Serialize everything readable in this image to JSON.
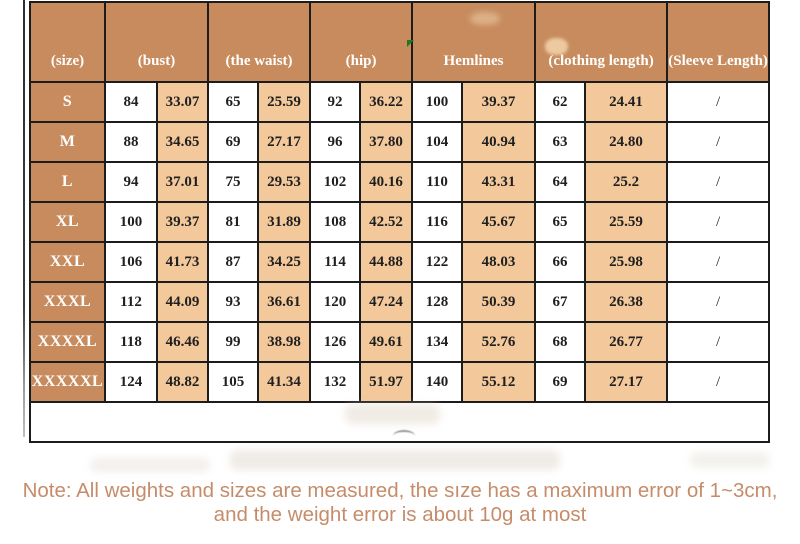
{
  "chart_data": {
    "type": "table",
    "columns": [
      "(size)",
      "(bust)",
      "(the waist)",
      "(hip)",
      "Hemlines",
      "(clothing length)",
      "(Sleeve Length)"
    ],
    "measure_columns_have_cm_and_inch_pair": true,
    "rows": [
      {
        "size": "S",
        "values": [
          "84",
          "33.07",
          "65",
          "25.59",
          "92",
          "36.22",
          "100",
          "39.37",
          "62",
          "24.41"
        ],
        "sleeve_length": "/"
      },
      {
        "size": "M",
        "values": [
          "88",
          "34.65",
          "69",
          "27.17",
          "96",
          "37.80",
          "104",
          "40.94",
          "63",
          "24.80"
        ],
        "sleeve_length": "/"
      },
      {
        "size": "L",
        "values": [
          "94",
          "37.01",
          "75",
          "29.53",
          "102",
          "40.16",
          "110",
          "43.31",
          "64",
          "25.2"
        ],
        "sleeve_length": "/"
      },
      {
        "size": "XL",
        "values": [
          "100",
          "39.37",
          "81",
          "31.89",
          "108",
          "42.52",
          "116",
          "45.67",
          "65",
          "25.59"
        ],
        "sleeve_length": "/"
      },
      {
        "size": "XXL",
        "values": [
          "106",
          "41.73",
          "87",
          "34.25",
          "114",
          "44.88",
          "122",
          "48.03",
          "66",
          "25.98"
        ],
        "sleeve_length": "/"
      },
      {
        "size": "XXXL",
        "values": [
          "112",
          "44.09",
          "93",
          "36.61",
          "120",
          "47.24",
          "128",
          "50.39",
          "67",
          "26.38"
        ],
        "sleeve_length": "/"
      },
      {
        "size": "XXXXL",
        "values": [
          "118",
          "46.46",
          "99",
          "38.98",
          "126",
          "49.61",
          "134",
          "52.76",
          "68",
          "26.77"
        ],
        "sleeve_length": "/"
      },
      {
        "size": "XXXXXL",
        "values": [
          "124",
          "48.82",
          "105",
          "41.34",
          "132",
          "51.97",
          "140",
          "55.12",
          "69",
          "27.17"
        ],
        "sleeve_length": "/"
      }
    ]
  },
  "note": {
    "line1": "Note: All weights and sizes are measured, the sıze has a maximum error of 1~3cm,",
    "line2": "and the weight error is about 10g at most"
  },
  "colors": {
    "header_bg": "#c78b5e",
    "inch_cell_bg": "#f3c99b",
    "cm_cell_bg": "#ffffff",
    "border": "#1c1c1c",
    "number_text": "#1f1f1f",
    "header_text": "#ffffff",
    "note_text": "#c68c6a",
    "marker_green": "#1e7a1e"
  }
}
